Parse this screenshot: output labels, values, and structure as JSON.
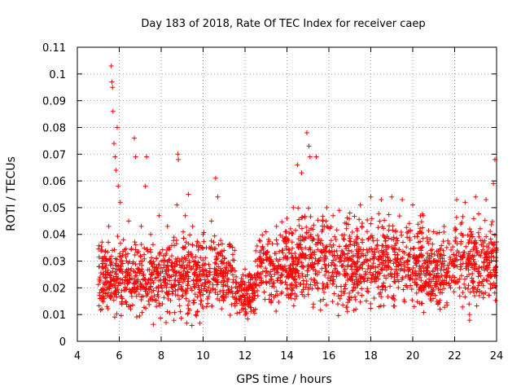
{
  "chart_data": {
    "type": "scatter",
    "title": "Day 183 of 2018, Rate Of TEC Index for receiver caep",
    "xlabel": "GPS time / hours",
    "ylabel": "ROTI / TECUs",
    "xlim": [
      4,
      24
    ],
    "ylim": [
      0,
      0.11
    ],
    "x_ticks": [
      4,
      6,
      8,
      10,
      12,
      14,
      16,
      18,
      20,
      22,
      24
    ],
    "x_tick_labels": [
      "4",
      "6",
      "8",
      "10",
      "12",
      "14",
      "16",
      "18",
      "20",
      "22",
      "24"
    ],
    "y_ticks": [
      0,
      0.01,
      0.02,
      0.03,
      0.04,
      0.05,
      0.06,
      0.07,
      0.08,
      0.09,
      0.1,
      0.11
    ],
    "y_tick_labels": [
      "0",
      "0.01",
      "0.02",
      "0.03",
      "0.04",
      "0.05",
      "0.06",
      "0.07",
      "0.08",
      "0.09",
      "0.1",
      "0.11"
    ],
    "grid": true,
    "marker": "+",
    "color": "#ff0000",
    "series": [
      {
        "name": "ROTI",
        "points": [
          [
            5.08,
            0.016
          ],
          [
            5.2,
            0.031
          ],
          [
            5.35,
            0.024
          ],
          [
            5.5,
            0.043
          ],
          [
            5.62,
            0.103
          ],
          [
            5.65,
            0.097
          ],
          [
            5.68,
            0.095
          ],
          [
            5.7,
            0.086
          ],
          [
            5.75,
            0.074
          ],
          [
            5.8,
            0.069
          ],
          [
            5.85,
            0.064
          ],
          [
            5.9,
            0.08
          ],
          [
            5.95,
            0.058
          ],
          [
            6.05,
            0.052
          ],
          [
            6.2,
            0.038
          ],
          [
            6.45,
            0.045
          ],
          [
            6.72,
            0.076
          ],
          [
            6.78,
            0.069
          ],
          [
            7.05,
            0.043
          ],
          [
            7.25,
            0.058
          ],
          [
            7.3,
            0.069
          ],
          [
            7.5,
            0.04
          ],
          [
            7.9,
            0.047
          ],
          [
            8.3,
            0.043
          ],
          [
            8.75,
            0.051
          ],
          [
            8.8,
            0.07
          ],
          [
            8.82,
            0.068
          ],
          [
            9.15,
            0.047
          ],
          [
            9.3,
            0.055
          ],
          [
            9.5,
            0.043
          ],
          [
            10.0,
            0.04
          ],
          [
            10.4,
            0.045
          ],
          [
            10.6,
            0.061
          ],
          [
            10.7,
            0.054
          ],
          [
            11.0,
            0.034
          ],
          [
            11.5,
            0.034
          ],
          [
            12.0,
            0.027
          ],
          [
            12.5,
            0.03
          ],
          [
            13.0,
            0.041
          ],
          [
            13.5,
            0.043
          ],
          [
            14.0,
            0.046
          ],
          [
            14.3,
            0.05
          ],
          [
            14.5,
            0.066
          ],
          [
            14.7,
            0.063
          ],
          [
            14.95,
            0.078
          ],
          [
            15.05,
            0.073
          ],
          [
            15.1,
            0.069
          ],
          [
            15.4,
            0.069
          ],
          [
            15.9,
            0.05
          ],
          [
            16.2,
            0.047
          ],
          [
            16.5,
            0.049
          ],
          [
            17.0,
            0.048
          ],
          [
            17.5,
            0.051
          ],
          [
            18.0,
            0.054
          ],
          [
            18.5,
            0.053
          ],
          [
            19.0,
            0.054
          ],
          [
            19.5,
            0.053
          ],
          [
            20.0,
            0.051
          ],
          [
            20.5,
            0.047
          ],
          [
            21.0,
            0.041
          ],
          [
            21.5,
            0.043
          ],
          [
            22.1,
            0.053
          ],
          [
            22.5,
            0.052
          ],
          [
            23.0,
            0.054
          ],
          [
            23.5,
            0.053
          ],
          [
            23.85,
            0.059
          ],
          [
            23.92,
            0.068
          ]
        ],
        "density_bands": [
          [
            5.0,
            9.0,
            0.004,
            0.04
          ],
          [
            9.0,
            11.5,
            0.004,
            0.042
          ],
          [
            11.5,
            12.5,
            0.006,
            0.028
          ],
          [
            12.5,
            14.5,
            0.006,
            0.045
          ],
          [
            14.5,
            15.7,
            0.008,
            0.05
          ],
          [
            15.7,
            18.0,
            0.006,
            0.048
          ],
          [
            18.0,
            20.5,
            0.008,
            0.048
          ],
          [
            20.5,
            22.0,
            0.008,
            0.042
          ],
          [
            22.0,
            24.0,
            0.006,
            0.048
          ]
        ]
      }
    ]
  }
}
